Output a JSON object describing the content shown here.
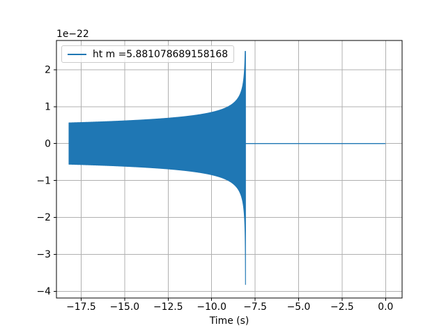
{
  "figure": {
    "background_color": "#ffffff",
    "text_color": "#000000",
    "frame_color": "#000000",
    "grid_color": "#b0b0b0"
  },
  "chart_data": {
    "type": "line",
    "title": "",
    "xlabel": "Time (s)",
    "ylabel": "",
    "offset_text": "1e−22",
    "y_unit_multiplier": "1e-22",
    "grid": true,
    "legend": {
      "position": "upper left",
      "label": "ht m =5.881078689158168",
      "line_color": "#1f77b4"
    },
    "xlim": [
      -18.92,
      0.95
    ],
    "ylim": [
      -4.184,
      2.792
    ],
    "x_ticks": [
      -17.5,
      -15.0,
      -12.5,
      -10.0,
      -7.5,
      -5.0,
      -2.5,
      0.0
    ],
    "x_tick_labels": [
      "−17.5",
      "−15.0",
      "−12.5",
      "−10.0",
      "−7.5",
      "−5.0",
      "−2.5",
      "0.0"
    ],
    "y_ticks": [
      2,
      1,
      0,
      -1,
      -2,
      -3,
      -4
    ],
    "y_tick_labels": [
      "2",
      "1",
      "0",
      "−1",
      "−2",
      "−3",
      "−4"
    ],
    "series": [
      {
        "name": "ht m =5.881078689158168",
        "color": "#1f77b4",
        "description": "compact-binary chirp strain: oscillating signal whose envelope grows as (t_merger - t)^(-1/4), spikes at merger, then is zero",
        "signal": {
          "t_start": -18.2,
          "t_merger": -8.05,
          "t_end": 0.0,
          "envelope_scale": 1.0,
          "envelope_exponent": -0.25,
          "start_amplitude": 0.56,
          "peak_positive": 2.5,
          "peak_negative": -3.82,
          "post_merger_level": 0
        }
      }
    ]
  }
}
